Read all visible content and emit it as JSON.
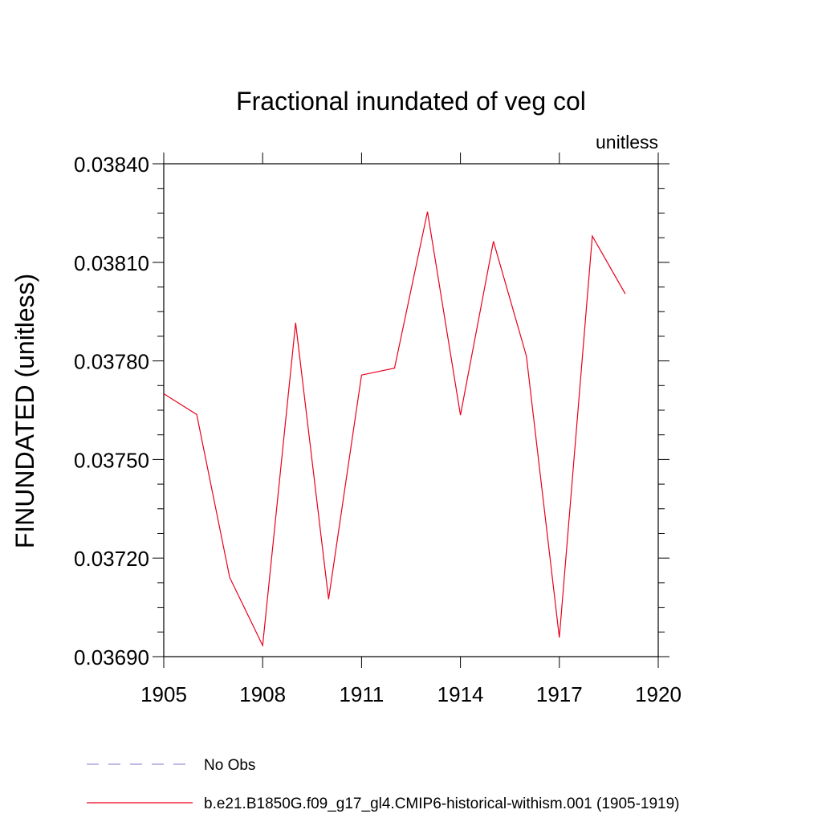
{
  "chart_data": {
    "type": "line",
    "title": "Fractional inundated of veg col",
    "units_label": "unitless",
    "ylabel": "FINUNDATED  (unitless)",
    "xlabel": "",
    "xlim": [
      1905,
      1920
    ],
    "ylim": [
      0.0369,
      0.0384
    ],
    "x_ticks": [
      1905,
      1908,
      1911,
      1914,
      1917,
      1920
    ],
    "x_tick_labels": [
      "1905",
      "1908",
      "1911",
      "1914",
      "1917",
      "1920"
    ],
    "y_ticks": [
      0.0369,
      0.0372,
      0.0375,
      0.0378,
      0.0381,
      0.0384
    ],
    "y_tick_labels": [
      "0.03690",
      "0.03720",
      "0.03750",
      "0.03780",
      "0.03810",
      "0.03840"
    ],
    "grid": false,
    "legend_position": "bottom",
    "series": [
      {
        "name": "b.e21.B1850G.f09_g17_gl4.CMIP6-historical-withism.001 (1905-1919)",
        "color": "#e8001c",
        "style": "solid",
        "x": [
          1905,
          1906,
          1907,
          1908,
          1909,
          1910,
          1911,
          1912,
          1913,
          1914,
          1915,
          1916,
          1917,
          1918,
          1919
        ],
        "values": [
          0.0377,
          0.037637,
          0.037141,
          0.036934,
          0.037916,
          0.037075,
          0.037757,
          0.037778,
          0.038254,
          0.037635,
          0.038164,
          0.037815,
          0.036958,
          0.03818,
          0.038004
        ]
      }
    ],
    "legend": [
      {
        "label": "No Obs",
        "color": "#9a90d8",
        "style": "dashed"
      },
      {
        "label": "b.e21.B1850G.f09_g17_gl4.CMIP6-historical-withism.001 (1905-1919)",
        "color": "#e8001c",
        "style": "solid"
      }
    ]
  }
}
